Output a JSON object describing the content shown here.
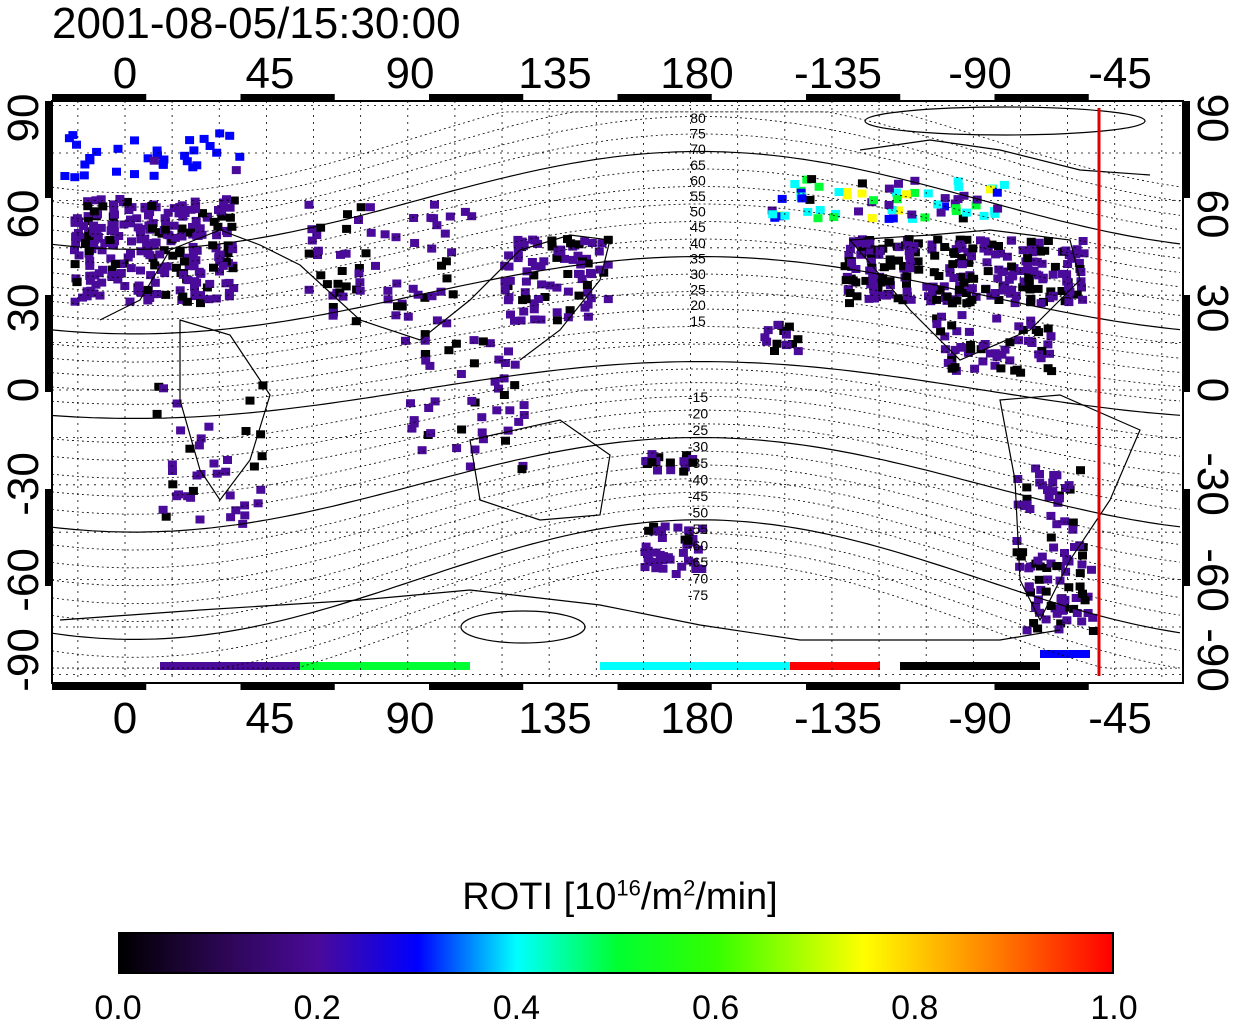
{
  "title": "2001-08-05/15:30:00",
  "map": {
    "projection": "equirectangular",
    "lon_ticks_top": [
      "0",
      "45",
      "90",
      "135",
      "180",
      "-135",
      "-90",
      "-45"
    ],
    "lon_ticks_bottom": [
      "0",
      "45",
      "90",
      "135",
      "180",
      "-135",
      "-90",
      "-45"
    ],
    "lat_ticks_left": [
      "90",
      "60",
      "30",
      "0",
      "-30",
      "-60",
      "-90"
    ],
    "lat_ticks_right": [
      "90",
      "60",
      "30",
      "0",
      "-30",
      "-60",
      "-90"
    ],
    "contour_labels": [
      "80",
      "75",
      "70",
      "65",
      "60",
      "55",
      "50",
      "45",
      "40",
      "35",
      "30",
      "25",
      "20",
      "15",
      "-15",
      "-20",
      "-25",
      "-30",
      "-35",
      "-40",
      "-45",
      "-50",
      "-55",
      "-60",
      "-65",
      "-70",
      "-75"
    ],
    "terminator_lon": -50,
    "terminator_color": "#dd0000",
    "roti_bands": [
      {
        "region": "Europe",
        "level": "low"
      },
      {
        "region": "North America",
        "level": "low"
      },
      {
        "region": "East Asia",
        "level": "low"
      },
      {
        "region": "Arctic North America",
        "level": "high"
      },
      {
        "region": "Antarctic rim",
        "level": "mixed"
      }
    ]
  },
  "colorbar": {
    "label_main": "ROTI  [10",
    "label_exp1": "16",
    "label_mid": "/m",
    "label_exp2": "2",
    "label_end": "/min]",
    "ticks": [
      "0.0",
      "0.2",
      "0.4",
      "0.6",
      "0.8",
      "1.0"
    ],
    "range": [
      0.0,
      1.0
    ],
    "colors": [
      "#000000",
      "#4a0a9a",
      "#0000ff",
      "#00ffff",
      "#00ff33",
      "#ffff00",
      "#ff0000"
    ]
  }
}
